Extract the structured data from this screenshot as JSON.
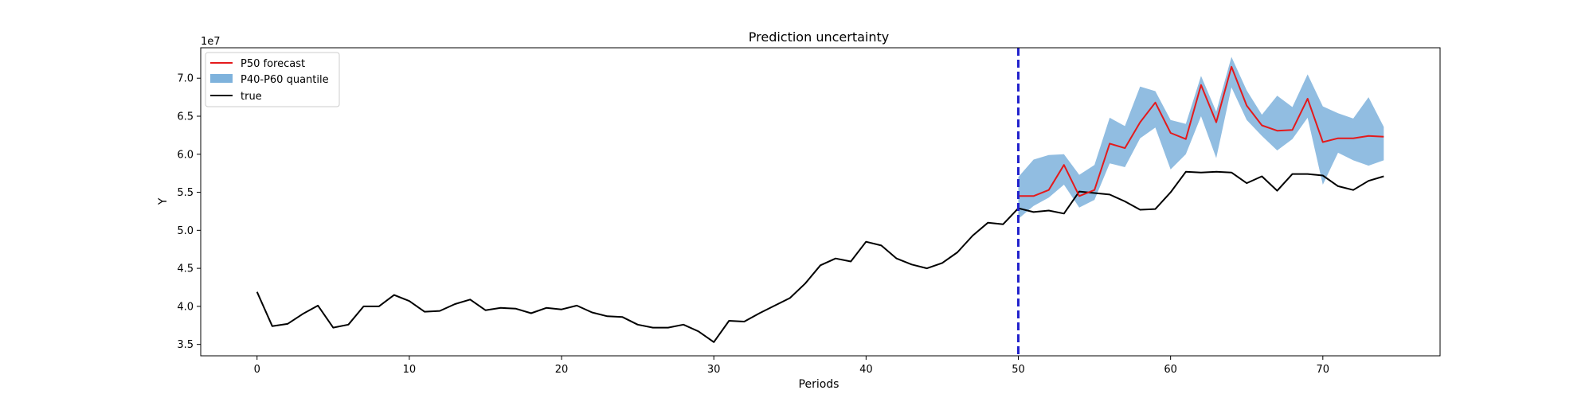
{
  "chart_data": {
    "type": "line",
    "title": "Prediction uncertainty",
    "xlabel": "Periods",
    "ylabel": "Y",
    "y_offset_label": "1e7",
    "xlim": [
      -3.7,
      77.7
    ],
    "ylim": [
      3.35,
      7.4
    ],
    "x_ticks": [
      0,
      10,
      20,
      30,
      40,
      50,
      60,
      70
    ],
    "y_ticks": [
      3.5,
      4.0,
      4.5,
      5.0,
      5.5,
      6.0,
      6.5,
      7.0
    ],
    "y_tick_labels": [
      "3.5",
      "4.0",
      "4.5",
      "5.0",
      "5.5",
      "6.0",
      "6.5",
      "7.0"
    ],
    "grid": false,
    "legend_position": "top-left",
    "vline": {
      "x": 50,
      "color": "#2222cc",
      "style": "dashed"
    },
    "series": [
      {
        "name": "true",
        "color": "#000000",
        "x_start": 0,
        "values": [
          4.19,
          3.74,
          3.77,
          3.9,
          4.01,
          3.72,
          3.76,
          4.0,
          4.0,
          4.15,
          4.07,
          3.93,
          3.94,
          4.03,
          4.09,
          3.95,
          3.98,
          3.97,
          3.91,
          3.98,
          3.96,
          4.01,
          3.92,
          3.87,
          3.86,
          3.76,
          3.72,
          3.72,
          3.76,
          3.67,
          3.53,
          3.81,
          3.8,
          3.91,
          4.01,
          4.11,
          4.3,
          4.54,
          4.63,
          4.59,
          4.85,
          4.8,
          4.63,
          4.55,
          4.5,
          4.57,
          4.71,
          4.93,
          5.1,
          5.08,
          5.29,
          5.24,
          5.26,
          5.22,
          5.51,
          5.49,
          5.47,
          5.38,
          5.27,
          5.28,
          5.5,
          5.77,
          5.76,
          5.77,
          5.76,
          5.62,
          5.71,
          5.52,
          5.74,
          5.74,
          5.72,
          5.58,
          5.53,
          5.65,
          5.71
        ]
      },
      {
        "name": "P50 forecast",
        "color": "#e41a1c",
        "x_start": 50,
        "values": [
          5.45,
          5.45,
          5.53,
          5.86,
          5.45,
          5.53,
          6.14,
          6.08,
          6.42,
          6.68,
          6.28,
          6.2,
          6.91,
          6.42,
          7.15,
          6.64,
          6.38,
          6.31,
          6.32,
          6.73,
          6.16,
          6.21,
          6.21,
          6.24,
          6.23
        ]
      }
    ],
    "band": {
      "name": "P40-P60 quantile",
      "color": "#7eb2dc",
      "x_start": 50,
      "lower": [
        5.15,
        5.32,
        5.43,
        5.6,
        5.3,
        5.4,
        5.88,
        5.83,
        6.21,
        6.35,
        5.8,
        6.0,
        6.5,
        5.95,
        6.88,
        6.45,
        6.24,
        6.05,
        6.2,
        6.48,
        5.6,
        6.02,
        5.92,
        5.85,
        5.92
      ],
      "upper": [
        5.7,
        5.93,
        5.99,
        6.0,
        5.73,
        5.86,
        6.48,
        6.37,
        6.89,
        6.83,
        6.45,
        6.4,
        7.03,
        6.56,
        7.28,
        6.84,
        6.52,
        6.77,
        6.62,
        7.05,
        6.63,
        6.54,
        6.47,
        6.75,
        6.36
      ]
    },
    "legend": [
      "P50 forecast",
      "P40-P60 quantile",
      "true"
    ]
  }
}
